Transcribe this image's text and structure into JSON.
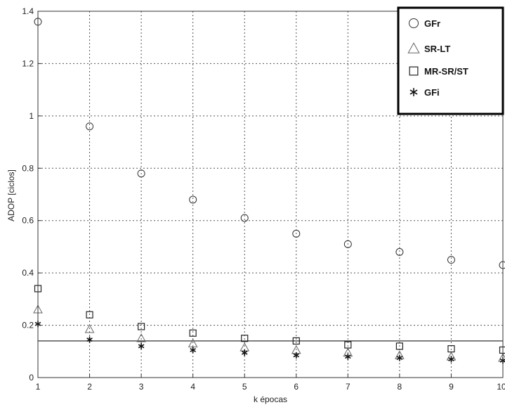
{
  "chart_data": {
    "type": "scatter",
    "xlabel": "k épocas",
    "ylabel": "ADOP [ciclos]",
    "xlim": [
      1,
      10
    ],
    "ylim": [
      0,
      1.4
    ],
    "x_ticks": [
      "1",
      "2",
      "3",
      "4",
      "5",
      "6",
      "7",
      "8",
      "9",
      "10"
    ],
    "y_ticks": [
      "0",
      "0.2",
      "0.4",
      "0.6",
      "0.8",
      "1",
      "1.2",
      "1.4"
    ],
    "grid": true,
    "legend_position": "top-right",
    "reference_line_y": 0.14,
    "x": [
      1,
      2,
      3,
      4,
      5,
      6,
      7,
      8,
      9,
      10
    ],
    "series": [
      {
        "name": "GFr",
        "marker": "circle",
        "values": [
          1.36,
          0.96,
          0.78,
          0.68,
          0.61,
          0.55,
          0.51,
          0.48,
          0.45,
          0.43
        ]
      },
      {
        "name": "SR-LT",
        "marker": "triangle",
        "values": [
          0.26,
          0.185,
          0.15,
          0.13,
          0.115,
          0.105,
          0.095,
          0.085,
          0.08,
          0.075
        ]
      },
      {
        "name": "MR-SR/ST",
        "marker": "square",
        "values": [
          0.34,
          0.24,
          0.195,
          0.17,
          0.15,
          0.14,
          0.125,
          0.12,
          0.11,
          0.105
        ]
      },
      {
        "name": "GFi",
        "marker": "asterisk",
        "values": [
          0.205,
          0.145,
          0.12,
          0.105,
          0.095,
          0.085,
          0.08,
          0.075,
          0.07,
          0.065
        ]
      }
    ]
  }
}
